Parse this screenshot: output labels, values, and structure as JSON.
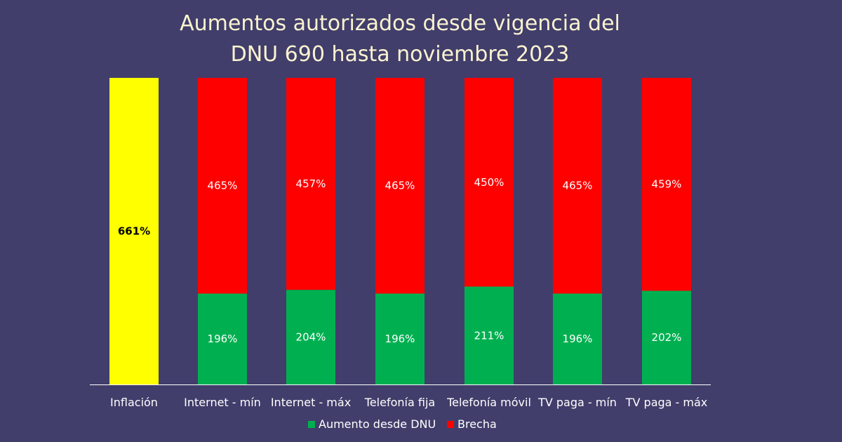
{
  "title_lines": [
    "Aumentos autorizados desde vigencia del",
    "DNU 690 hasta noviembre 2023"
  ],
  "chart_data": {
    "type": "bar",
    "stacked": true,
    "categories": [
      "Inflación",
      "Internet - mín",
      "Internet - máx",
      "Telefonía fija",
      "Telefonía móvil",
      "TV paga - mín",
      "TV paga - máx"
    ],
    "inflation": {
      "category": "Inflación",
      "value": 661,
      "label": "661%",
      "color": "#ffff00"
    },
    "series": [
      {
        "name": "Aumento desde DNU",
        "color": "#00b050",
        "values": [
          null,
          196,
          204,
          196,
          211,
          196,
          202
        ],
        "labels": [
          "",
          "196%",
          "204%",
          "196%",
          "211%",
          "196%",
          "202%"
        ]
      },
      {
        "name": "Brecha",
        "color": "#ff0000",
        "values": [
          null,
          465,
          457,
          465,
          450,
          465,
          459
        ],
        "labels": [
          "",
          "465%",
          "457%",
          "465%",
          "450%",
          "465%",
          "459%"
        ]
      }
    ],
    "ylim": [
      0,
      661
    ],
    "grid": false,
    "legend_position": "bottom"
  },
  "colors": {
    "background": "#413e6b",
    "title": "#fbf3d0",
    "axis": "#ffffff"
  }
}
